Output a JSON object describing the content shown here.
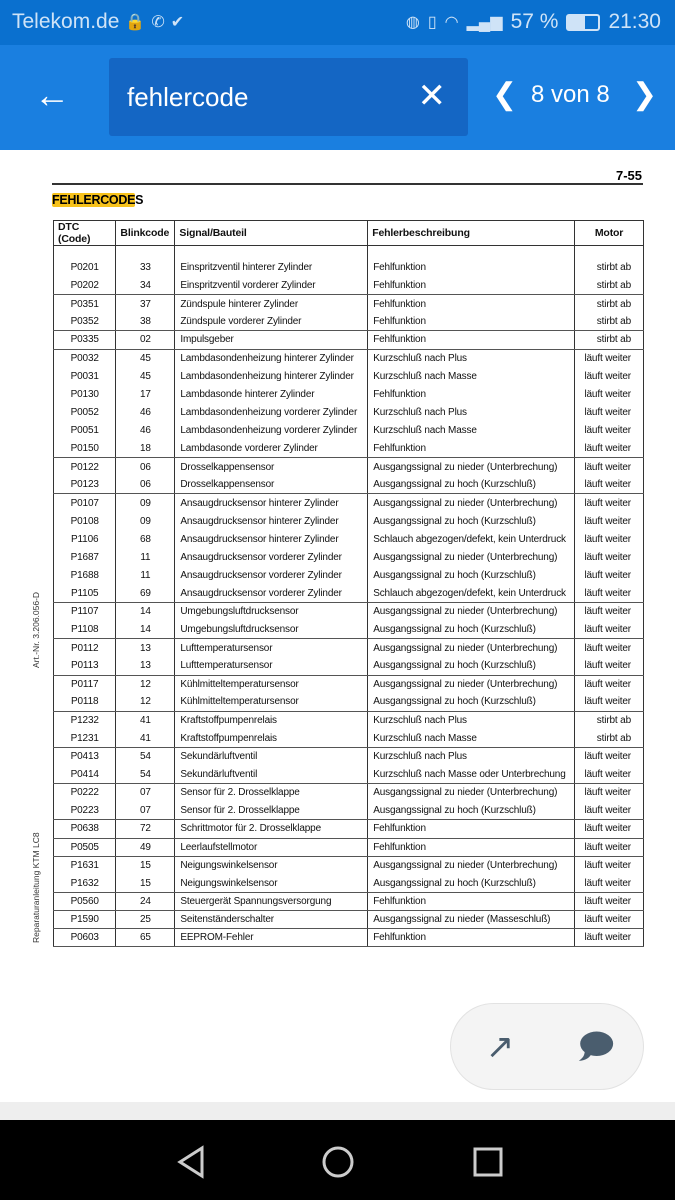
{
  "status": {
    "carrier": "Telekom.de",
    "battery": "57 %",
    "time": "21:30",
    "icons": [
      "lock-chat-icon",
      "whatsapp-icon",
      "check-flag-icon",
      "data-saver-icon",
      "vibrate-icon",
      "wifi-icon",
      "signal-icon",
      "battery-icon"
    ]
  },
  "toolbar": {
    "search_value": "fehlercode",
    "match_count": "8 von 8",
    "icons": [
      "back-arrow-icon",
      "close-icon",
      "chevron-left-icon",
      "chevron-right-icon"
    ]
  },
  "doc": {
    "page_number": "7-55",
    "title_highlight": "FEHLERCODE",
    "title_rest": "S",
    "side_art": "Art.-Nr.  3.206.056-D",
    "side_manual": "Reparaturanleitung  KTM LC8",
    "headers": [
      "DTC (Code)",
      "Blinkcode",
      "Signal/Bauteil",
      "Fehlerbeschreibung",
      "Motor"
    ],
    "rows": [
      [
        "P0201",
        "33",
        "Einspritzventil hinterer Zylinder",
        "Fehlfunktion",
        "stirbt ab",
        0
      ],
      [
        "P0202",
        "34",
        "Einspritzventil vorderer Zylinder",
        "Fehlfunktion",
        "stirbt ab",
        1
      ],
      [
        "P0351",
        "37",
        "Zündspule hinterer Zylinder",
        "Fehlfunktion",
        "stirbt ab",
        0
      ],
      [
        "P0352",
        "38",
        "Zündspule vorderer Zylinder",
        "Fehlfunktion",
        "stirbt ab",
        1
      ],
      [
        "P0335",
        "02",
        "Impulsgeber",
        "Fehlfunktion",
        "stirbt ab",
        1
      ],
      [
        "P0032",
        "45",
        "Lambdasondenheizung hinterer Zylinder",
        "Kurzschluß nach Plus",
        "läuft weiter",
        0
      ],
      [
        "P0031",
        "45",
        "Lambdasondenheizung hinterer Zylinder",
        "Kurzschluß nach Masse",
        "läuft weiter",
        0
      ],
      [
        "P0130",
        "17",
        "Lambdasonde hinterer Zylinder",
        "Fehlfunktion",
        "läuft weiter",
        0
      ],
      [
        "P0052",
        "46",
        "Lambdasondenheizung vorderer Zylinder",
        "Kurzschluß nach Plus",
        "läuft weiter",
        0
      ],
      [
        "P0051",
        "46",
        "Lambdasondenheizung vorderer Zylinder",
        "Kurzschluß nach Masse",
        "läuft weiter",
        0
      ],
      [
        "P0150",
        "18",
        "Lambdasonde vorderer Zylinder",
        "Fehlfunktion",
        "läuft weiter",
        1
      ],
      [
        "P0122",
        "06",
        "Drosselkappensensor",
        "Ausgangssignal zu nieder (Unterbrechung)",
        "läuft weiter",
        0
      ],
      [
        "P0123",
        "06",
        "Drosselkappensensor",
        "Ausgangssignal zu hoch (Kurzschluß)",
        "läuft weiter",
        1
      ],
      [
        "P0107",
        "09",
        "Ansaugdrucksensor hinterer Zylinder",
        "Ausgangssignal zu nieder (Unterbrechung)",
        "läuft weiter",
        0
      ],
      [
        "P0108",
        "09",
        "Ansaugdrucksensor hinterer Zylinder",
        "Ausgangssignal zu hoch (Kurzschluß)",
        "läuft weiter",
        0
      ],
      [
        "P1106",
        "68",
        "Ansaugdrucksensor hinterer Zylinder",
        "Schlauch abgezogen/defekt, kein Unterdruck",
        "läuft weiter",
        0
      ],
      [
        "P1687",
        "11",
        "Ansaugdrucksensor vorderer Zylinder",
        "Ausgangssignal zu nieder (Unterbrechung)",
        "läuft weiter",
        0
      ],
      [
        "P1688",
        "11",
        "Ansaugdrucksensor vorderer Zylinder",
        "Ausgangssignal zu hoch (Kurzschluß)",
        "läuft weiter",
        0
      ],
      [
        "P1105",
        "69",
        "Ansaugdrucksensor vorderer Zylinder",
        "Schlauch abgezogen/defekt, kein Unterdruck",
        "läuft weiter",
        1
      ],
      [
        "P1107",
        "14",
        "Umgebungsluftdrucksensor",
        "Ausgangssignal zu nieder (Unterbrechung)",
        "läuft weiter",
        0
      ],
      [
        "P1108",
        "14",
        "Umgebungsluftdrucksensor",
        "Ausgangssignal zu hoch (Kurzschluß)",
        "läuft weiter",
        1
      ],
      [
        "P0112",
        "13",
        "Lufttemperatursensor",
        "Ausgangssignal zu nieder (Unterbrechung)",
        "läuft weiter",
        0
      ],
      [
        "P0113",
        "13",
        "Lufttemperatursensor",
        "Ausgangssignal zu hoch (Kurzschluß)",
        "läuft weiter",
        1
      ],
      [
        "P0117",
        "12",
        "Kühlmitteltemperatursensor",
        "Ausgangssignal zu nieder (Unterbrechung)",
        "läuft weiter",
        0
      ],
      [
        "P0118",
        "12",
        "Kühlmitteltemperatursensor",
        "Ausgangssignal zu hoch (Kurzschluß)",
        "läuft weiter",
        1
      ],
      [
        "P1232",
        "41",
        "Kraftstoffpumpenrelais",
        "Kurzschluß nach Plus",
        "stirbt ab",
        0
      ],
      [
        "P1231",
        "41",
        "Kraftstoffpumpenrelais",
        "Kurzschluß nach Masse",
        "stirbt ab",
        1
      ],
      [
        "P0413",
        "54",
        "Sekundärluftventil",
        "Kurzschluß nach Plus",
        "läuft weiter",
        0
      ],
      [
        "P0414",
        "54",
        "Sekundärluftventil",
        "Kurzschluß nach Masse oder Unterbrechung",
        "läuft weiter",
        1
      ],
      [
        "P0222",
        "07",
        "Sensor für 2. Drosselklappe",
        "Ausgangssignal zu nieder (Unterbrechung)",
        "läuft weiter",
        0
      ],
      [
        "P0223",
        "07",
        "Sensor für 2. Drosselklappe",
        "Ausgangssignal zu hoch (Kurzschluß)",
        "läuft weiter",
        1
      ],
      [
        "P0638",
        "72",
        "Schrittmotor für 2. Drosselklappe",
        "Fehlfunktion",
        "läuft weiter",
        1
      ],
      [
        "P0505",
        "49",
        "Leerlaufstellmotor",
        "Fehlfunktion",
        "läuft weiter",
        1
      ],
      [
        "P1631",
        "15",
        "Neigungswinkelsensor",
        "Ausgangssignal zu nieder (Unterbrechung)",
        "läuft weiter",
        0
      ],
      [
        "P1632",
        "15",
        "Neigungswinkelsensor",
        "Ausgangssignal zu hoch (Kurzschluß)",
        "läuft weiter",
        1
      ],
      [
        "P0560",
        "24",
        "Steuergerät Spannungsversorgung",
        "Fehlfunktion",
        "läuft weiter",
        1
      ],
      [
        "P1590",
        "25",
        "Seitenständerschalter",
        "Ausgangssignal zu nieder (Masseschluß)",
        "läuft weiter",
        1
      ],
      [
        "P0603",
        "65",
        "EEPROM-Fehler",
        "Fehlfunktion",
        "läuft weiter",
        1
      ]
    ]
  },
  "fab": {
    "icons": [
      "open-external-icon",
      "comment-icon"
    ]
  },
  "colors": {
    "status_bar": "#0a70cf",
    "toolbar": "#1a7fe0",
    "search_field": "#1466c4",
    "highlight": "#f7c21b"
  }
}
